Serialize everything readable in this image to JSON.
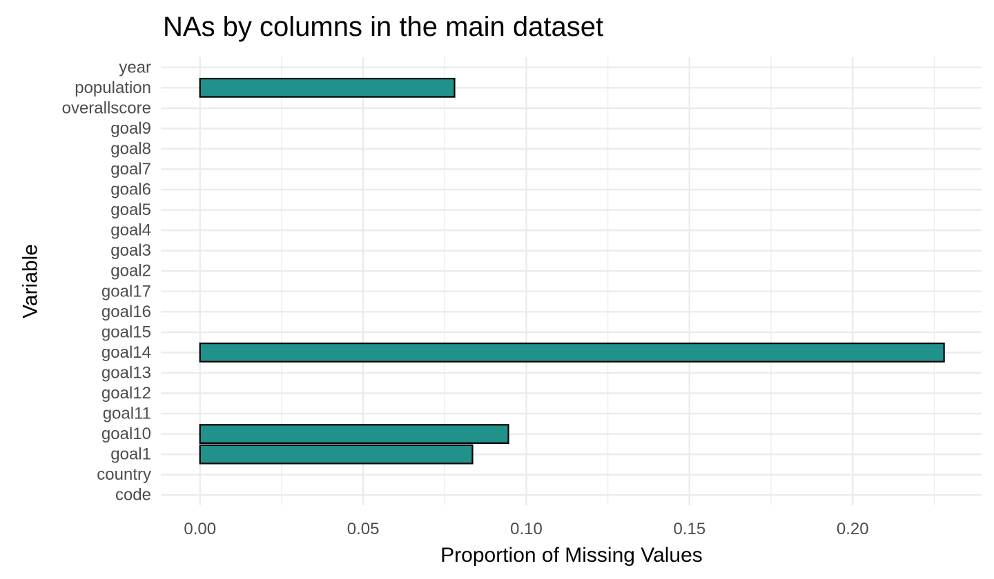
{
  "chart_data": {
    "type": "bar",
    "orientation": "horizontal",
    "title": "NAs by columns in the main dataset",
    "xlabel": "Proportion of Missing Values",
    "ylabel": "Variable",
    "categories": [
      "year",
      "population",
      "overallscore",
      "goal9",
      "goal8",
      "goal7",
      "goal6",
      "goal5",
      "goal4",
      "goal3",
      "goal2",
      "goal17",
      "goal16",
      "goal15",
      "goal14",
      "goal13",
      "goal12",
      "goal11",
      "goal10",
      "goal1",
      "country",
      "code"
    ],
    "values": [
      0,
      0.078,
      0,
      0,
      0,
      0,
      0,
      0,
      0,
      0,
      0,
      0,
      0,
      0,
      0.228,
      0,
      0,
      0,
      0.0945,
      0.0835,
      0,
      0
    ],
    "xlim": [
      -0.012,
      0.2395
    ],
    "xticks": [
      0,
      0.05,
      0.1,
      0.15,
      0.2
    ],
    "xtick_labels": [
      "0.00",
      "0.05",
      "0.10",
      "0.15",
      "0.20"
    ],
    "grid": true,
    "colors": {
      "bar_fill": "#21918c",
      "bar_stroke": "#000000",
      "grid": "#ebebeb"
    }
  }
}
